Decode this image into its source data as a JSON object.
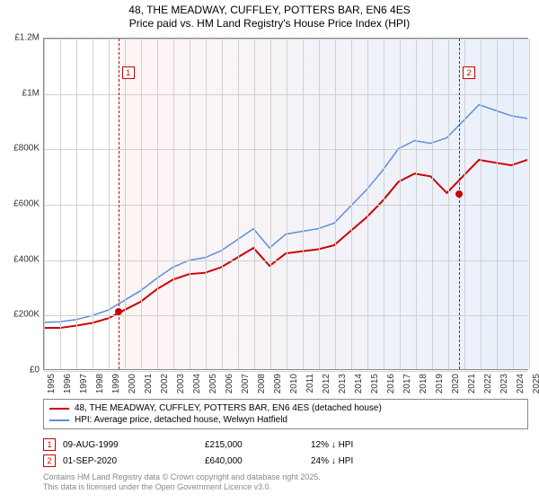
{
  "title_line1": "48, THE MEADWAY, CUFFLEY, POTTERS BAR, EN6 4ES",
  "title_line2": "Price paid vs. HM Land Registry's House Price Index (HPI)",
  "title_fontsize": 12,
  "chart": {
    "type": "line",
    "background_color": "#ffffff",
    "grid_color": "#d0d0d0",
    "plot_border_color": "#888888",
    "x": {
      "min": 1995,
      "max": 2025,
      "tick_step": 1,
      "label_rotation": -90,
      "tick_fontsize": 10
    },
    "y": {
      "min": 0,
      "max": 1200000,
      "tick_step": 200000,
      "labels": [
        "£0",
        "£200K",
        "£400K",
        "£600K",
        "£800K",
        "£1M",
        "£1.2M"
      ],
      "tick_fontsize": 10
    },
    "bg_gradients": [
      {
        "from_year": 1999.6,
        "to_year": 2025,
        "color_left": "#fff5f5",
        "color_right": "#e8f0fb"
      },
      {
        "from_year": 2020.67,
        "to_year": 2025,
        "color_left": "#f5faff",
        "color_right": "#e8f0fb"
      }
    ],
    "series": [
      {
        "id": "hpi",
        "label": "HPI: Average price, detached house, Welwyn Hatfield",
        "color": "#5b8fd6",
        "width": 1.5,
        "data": [
          [
            1995,
            170000
          ],
          [
            1996,
            172000
          ],
          [
            1997,
            180000
          ],
          [
            1998,
            195000
          ],
          [
            1999,
            215000
          ],
          [
            2000,
            250000
          ],
          [
            2001,
            285000
          ],
          [
            2002,
            330000
          ],
          [
            2003,
            370000
          ],
          [
            2004,
            395000
          ],
          [
            2005,
            405000
          ],
          [
            2006,
            430000
          ],
          [
            2007,
            470000
          ],
          [
            2008,
            510000
          ],
          [
            2009,
            440000
          ],
          [
            2010,
            490000
          ],
          [
            2011,
            500000
          ],
          [
            2012,
            510000
          ],
          [
            2013,
            530000
          ],
          [
            2014,
            590000
          ],
          [
            2015,
            650000
          ],
          [
            2016,
            720000
          ],
          [
            2017,
            800000
          ],
          [
            2018,
            830000
          ],
          [
            2019,
            820000
          ],
          [
            2020,
            840000
          ],
          [
            2021,
            900000
          ],
          [
            2022,
            960000
          ],
          [
            2023,
            940000
          ],
          [
            2024,
            920000
          ],
          [
            2025,
            910000
          ]
        ]
      },
      {
        "id": "property",
        "label": "48, THE MEADWAY, CUFFLEY, POTTERS BAR, EN6 4ES (detached house)",
        "color": "#cc0000",
        "width": 2,
        "data": [
          [
            1995,
            150000
          ],
          [
            1996,
            150000
          ],
          [
            1997,
            158000
          ],
          [
            1998,
            168000
          ],
          [
            1999,
            185000
          ],
          [
            2000,
            215000
          ],
          [
            2001,
            245000
          ],
          [
            2002,
            290000
          ],
          [
            2003,
            325000
          ],
          [
            2004,
            345000
          ],
          [
            2005,
            350000
          ],
          [
            2006,
            370000
          ],
          [
            2007,
            405000
          ],
          [
            2008,
            440000
          ],
          [
            2009,
            375000
          ],
          [
            2010,
            420000
          ],
          [
            2011,
            428000
          ],
          [
            2012,
            435000
          ],
          [
            2013,
            450000
          ],
          [
            2014,
            500000
          ],
          [
            2015,
            550000
          ],
          [
            2016,
            610000
          ],
          [
            2017,
            680000
          ],
          [
            2018,
            710000
          ],
          [
            2019,
            700000
          ],
          [
            2020,
            640000
          ],
          [
            2021,
            700000
          ],
          [
            2022,
            760000
          ],
          [
            2023,
            750000
          ],
          [
            2024,
            740000
          ],
          [
            2025,
            760000
          ]
        ]
      }
    ],
    "markers": [
      {
        "n": "1",
        "year": 1999.6,
        "box_y": 1100000
      },
      {
        "n": "2",
        "year": 2020.67,
        "box_y": 1100000
      }
    ],
    "dots": [
      {
        "year": 1999.6,
        "value": 215000,
        "color": "#cc0000"
      },
      {
        "year": 2020.67,
        "value": 640000,
        "color": "#cc0000"
      }
    ]
  },
  "legend": {
    "items": [
      {
        "color": "#cc0000",
        "label_path": "chart.series.1.label"
      },
      {
        "color": "#5b8fd6",
        "label_path": "chart.series.0.label"
      }
    ]
  },
  "transactions": {
    "hpi_suffix": " ↓ HPI",
    "rows": [
      {
        "n": "1",
        "date": "09-AUG-1999",
        "price": "£215,000",
        "hpi_delta": "12%"
      },
      {
        "n": "2",
        "date": "01-SEP-2020",
        "price": "£640,000",
        "hpi_delta": "24%"
      }
    ]
  },
  "attribution": {
    "line1": "Contains HM Land Registry data © Crown copyright and database right 2025.",
    "line2": "This data is licensed under the Open Government Licence v3.0."
  },
  "colors": {
    "text": "#333333",
    "muted": "#888888"
  }
}
